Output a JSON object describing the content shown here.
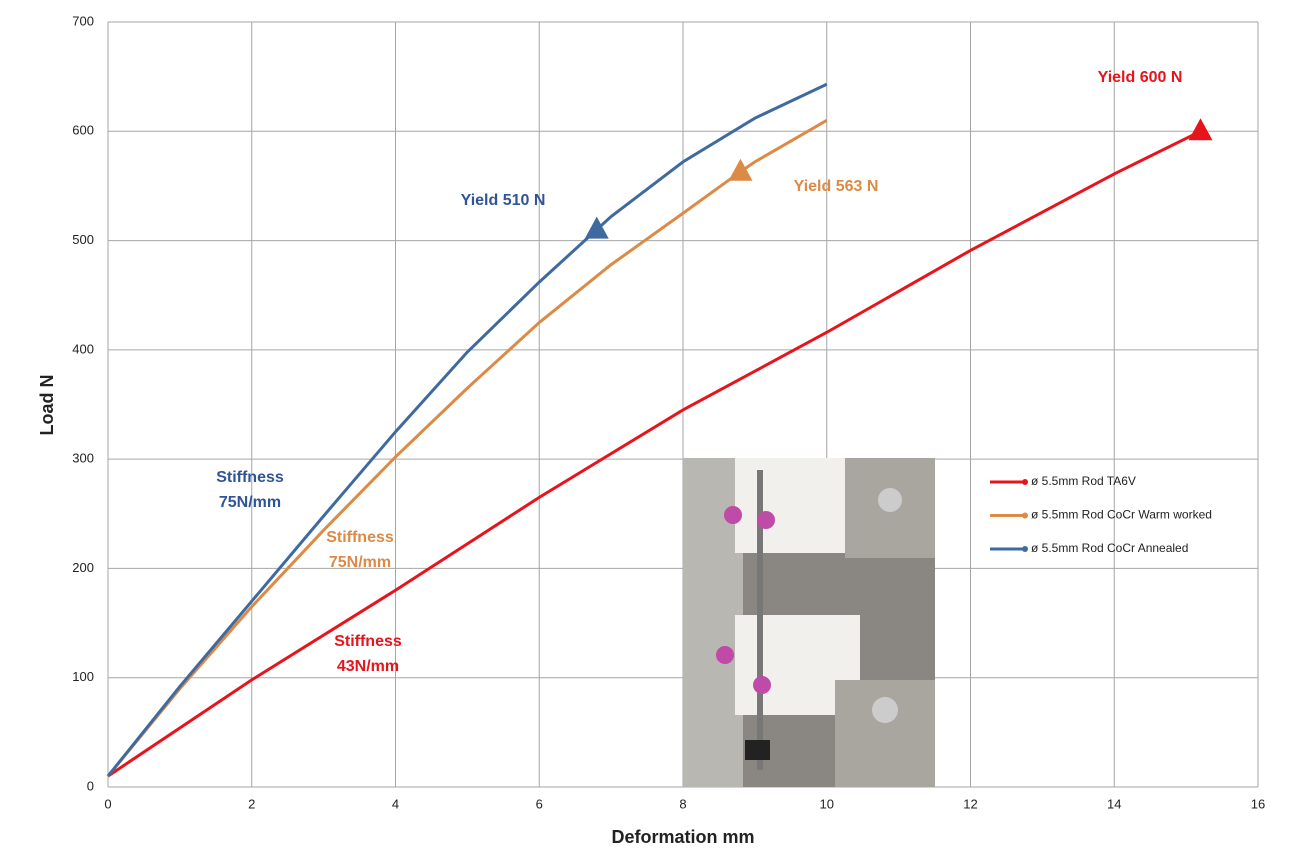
{
  "chart_data": {
    "type": "line",
    "xlabel": "Deformation mm",
    "ylabel": "Load N",
    "xlim": [
      0,
      16
    ],
    "ylim": [
      0,
      700
    ],
    "xticks": [
      0,
      2,
      4,
      6,
      8,
      10,
      12,
      14,
      16
    ],
    "yticks": [
      0,
      100,
      200,
      300,
      400,
      500,
      600,
      700
    ],
    "grid": true,
    "series": [
      {
        "name": "ø 5.5mm Rod TA6V",
        "color": "#e8141c",
        "x": [
          0,
          2,
          4,
          6,
          8,
          10,
          12,
          14,
          15.2
        ],
        "values": [
          10,
          98,
          180,
          265,
          345,
          416,
          491,
          561,
          600
        ],
        "yield": {
          "x": 15.2,
          "y": 600
        }
      },
      {
        "name": "ø 5.5mm Rod CoCr Warm worked",
        "color": "#dc8a45",
        "x": [
          0,
          1,
          2,
          3,
          4,
          5,
          6,
          7,
          8,
          8.8,
          9,
          10
        ],
        "values": [
          10,
          90,
          165,
          235,
          302,
          365,
          425,
          478,
          525,
          563,
          572,
          610
        ],
        "yield": {
          "x": 8.8,
          "y": 563
        }
      },
      {
        "name": "ø 5.5mm Rod CoCr Annealed",
        "color": "#3f6aa0",
        "x": [
          0,
          1,
          2,
          3,
          4,
          5,
          6,
          6.8,
          7,
          8,
          9,
          10
        ],
        "values": [
          10,
          92,
          170,
          248,
          325,
          398,
          462,
          510,
          522,
          572,
          612,
          643
        ],
        "yield": {
          "x": 6.8,
          "y": 510
        }
      }
    ],
    "annotations": [
      {
        "lines": [
          "Yield 600 N"
        ],
        "color": "#e8141c"
      },
      {
        "lines": [
          "Yield 563 N"
        ],
        "color": "#dc8a45"
      },
      {
        "lines": [
          "Yield 510 N"
        ],
        "color": "#2f5597"
      },
      {
        "lines": [
          "Stiffness",
          "75N/mm"
        ],
        "color": "#2f5597"
      },
      {
        "lines": [
          "Stiffness",
          "75N/mm"
        ],
        "color": "#dc8a45"
      },
      {
        "lines": [
          "Stiffness",
          "43N/mm"
        ],
        "color": "#e8141c"
      }
    ]
  }
}
